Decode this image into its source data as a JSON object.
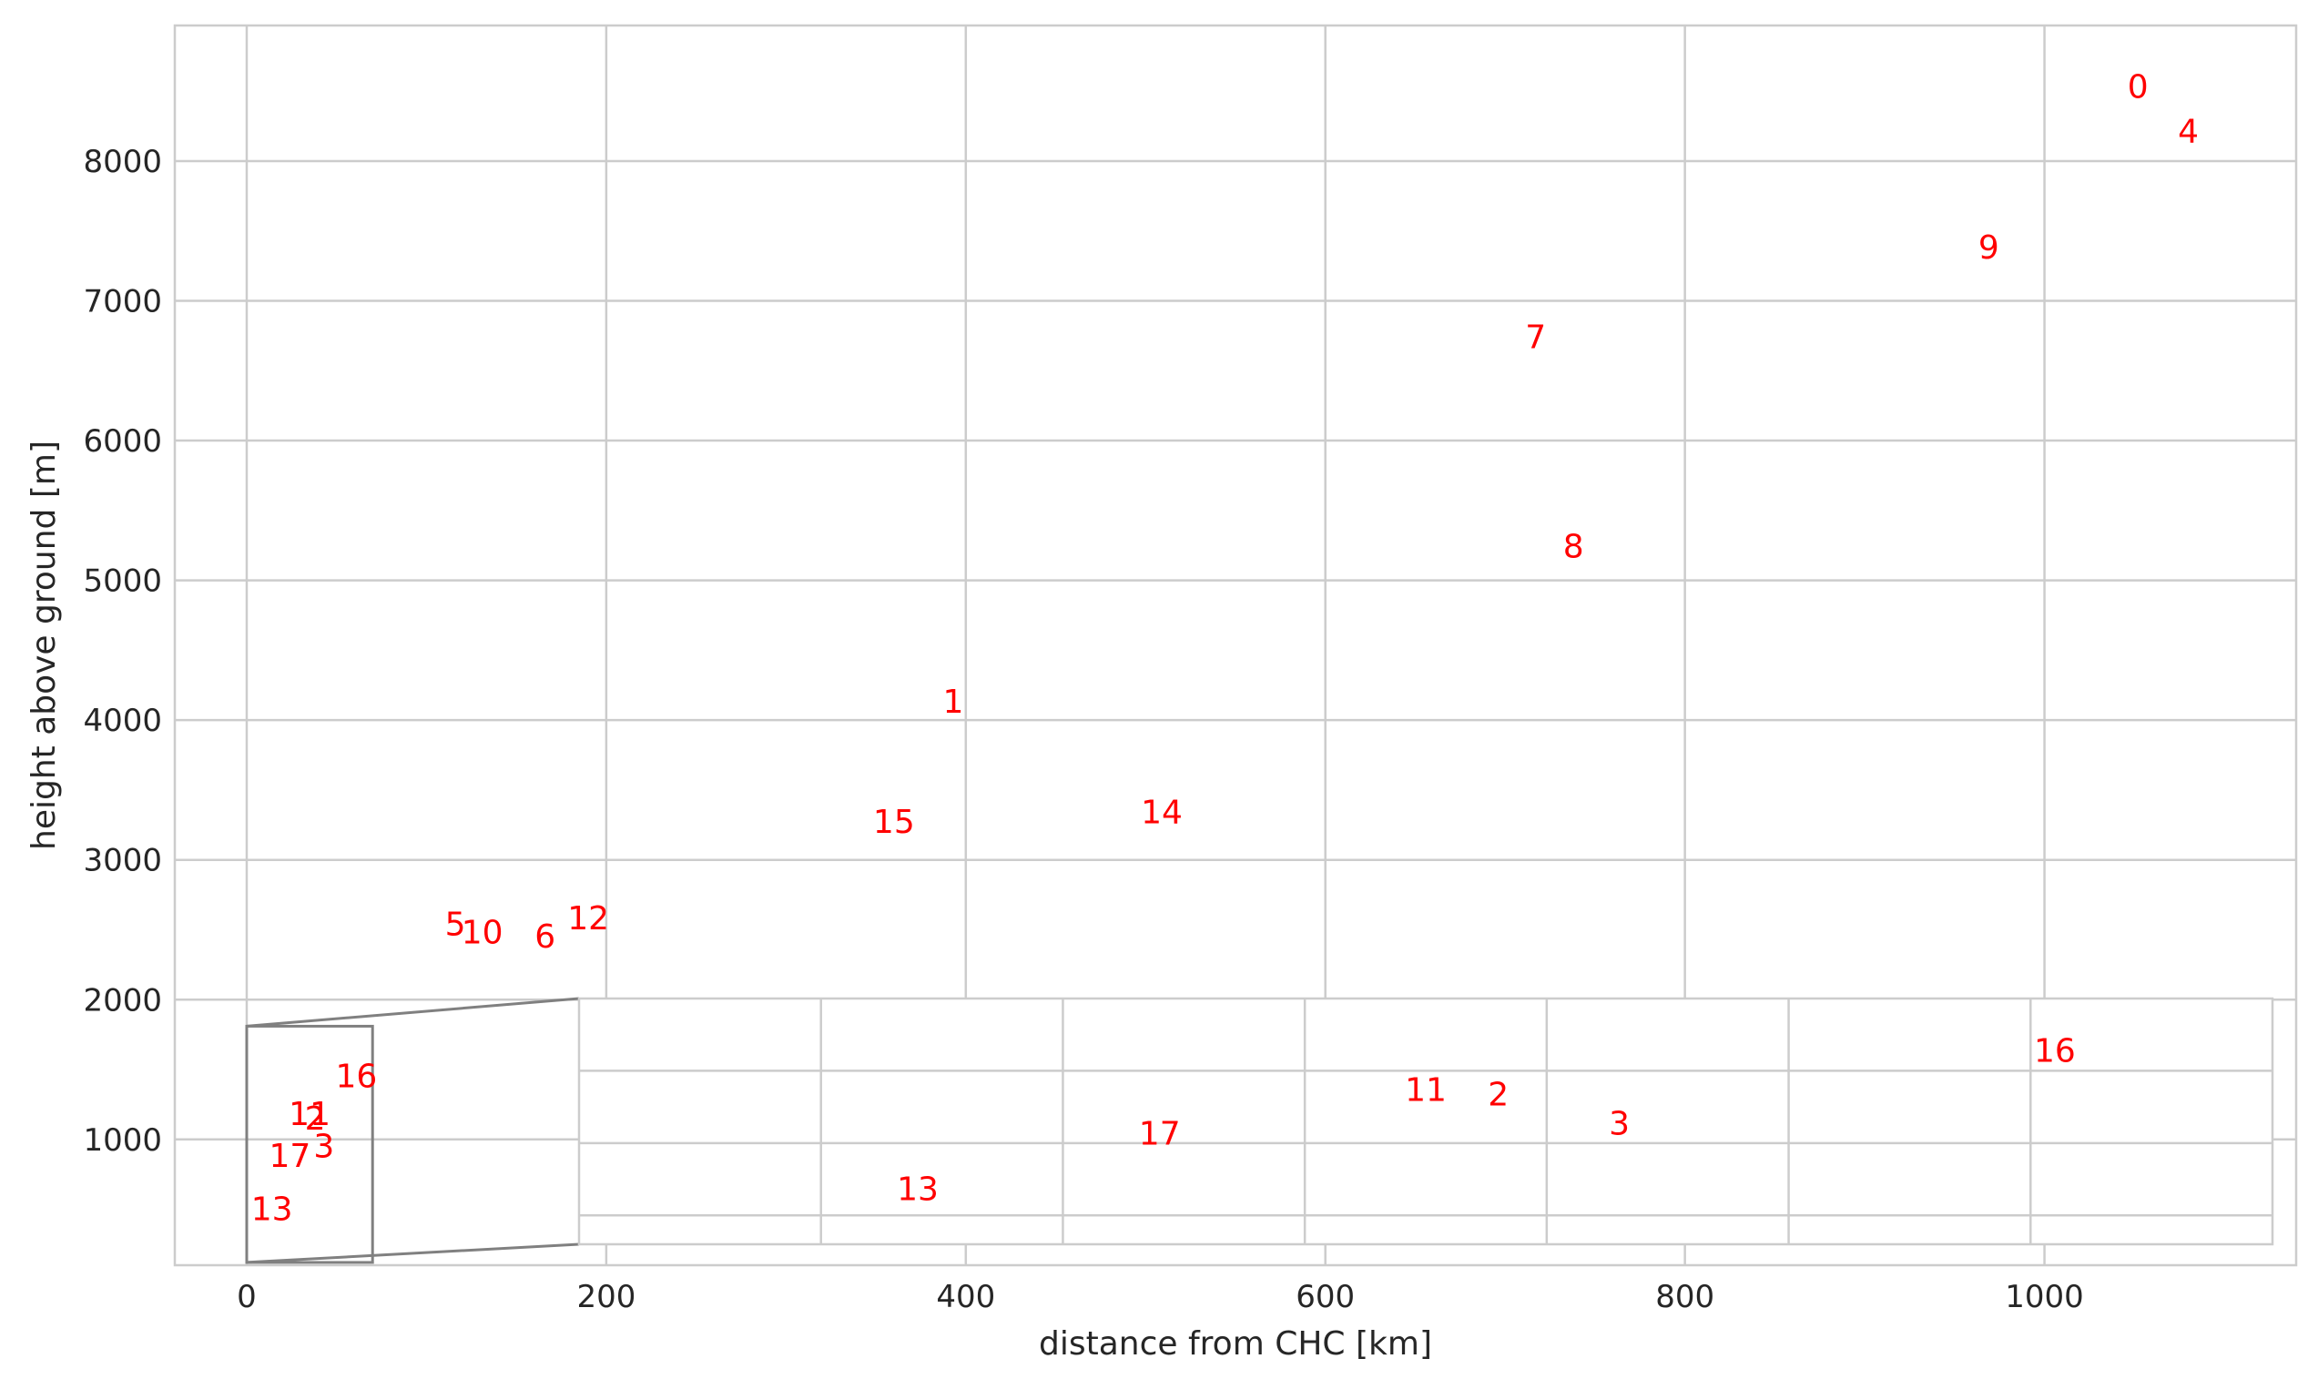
{
  "chart_data": {
    "type": "scatter",
    "title": "",
    "xlabel": "distance from CHC [km]",
    "ylabel": "height above ground [m]",
    "xlim": [
      -40,
      1140
    ],
    "ylim": [
      100,
      8970
    ],
    "xticks": [
      0,
      200,
      400,
      600,
      800,
      1000
    ],
    "yticks": [
      1000,
      2000,
      3000,
      4000,
      5000,
      6000,
      7000,
      8000
    ],
    "grid": true,
    "label_color": "#ff0000",
    "points": [
      {
        "label": "0",
        "x": 1052,
        "y": 8530
      },
      {
        "label": "1",
        "x": 393,
        "y": 4130
      },
      {
        "label": "4",
        "x": 1080,
        "y": 8210
      },
      {
        "label": "5",
        "x": 116,
        "y": 2540
      },
      {
        "label": "6",
        "x": 166,
        "y": 2450
      },
      {
        "label": "7",
        "x": 717,
        "y": 6740
      },
      {
        "label": "8",
        "x": 738,
        "y": 5240
      },
      {
        "label": "9",
        "x": 969,
        "y": 7380
      },
      {
        "label": "10",
        "x": 131,
        "y": 2480
      },
      {
        "label": "12",
        "x": 190,
        "y": 2580
      },
      {
        "label": "14",
        "x": 509,
        "y": 3340
      },
      {
        "label": "15",
        "x": 360,
        "y": 3270
      },
      {
        "label": "11",
        "x": 35,
        "y": 1180
      },
      {
        "label": "2",
        "x": 38,
        "y": 1150
      },
      {
        "label": "16",
        "x": 61,
        "y": 1450
      },
      {
        "label": "17",
        "x": 24,
        "y": 880
      },
      {
        "label": "3",
        "x": 43,
        "y": 950
      },
      {
        "label": "13",
        "x": 14,
        "y": 500
      }
    ],
    "zoom_region": {
      "xlim": [
        0,
        70
      ],
      "ylim": [
        120,
        1810
      ]
    },
    "inset": {
      "location": "lower-right",
      "points": [
        {
          "label": "16",
          "x": 61,
          "y": 1450
        },
        {
          "label": "11",
          "x": 35,
          "y": 1180
        },
        {
          "label": "2",
          "x": 38,
          "y": 1150
        },
        {
          "label": "3",
          "x": 43,
          "y": 950
        },
        {
          "label": "17",
          "x": 24,
          "y": 880
        },
        {
          "label": "13",
          "x": 14,
          "y": 500
        }
      ]
    }
  }
}
